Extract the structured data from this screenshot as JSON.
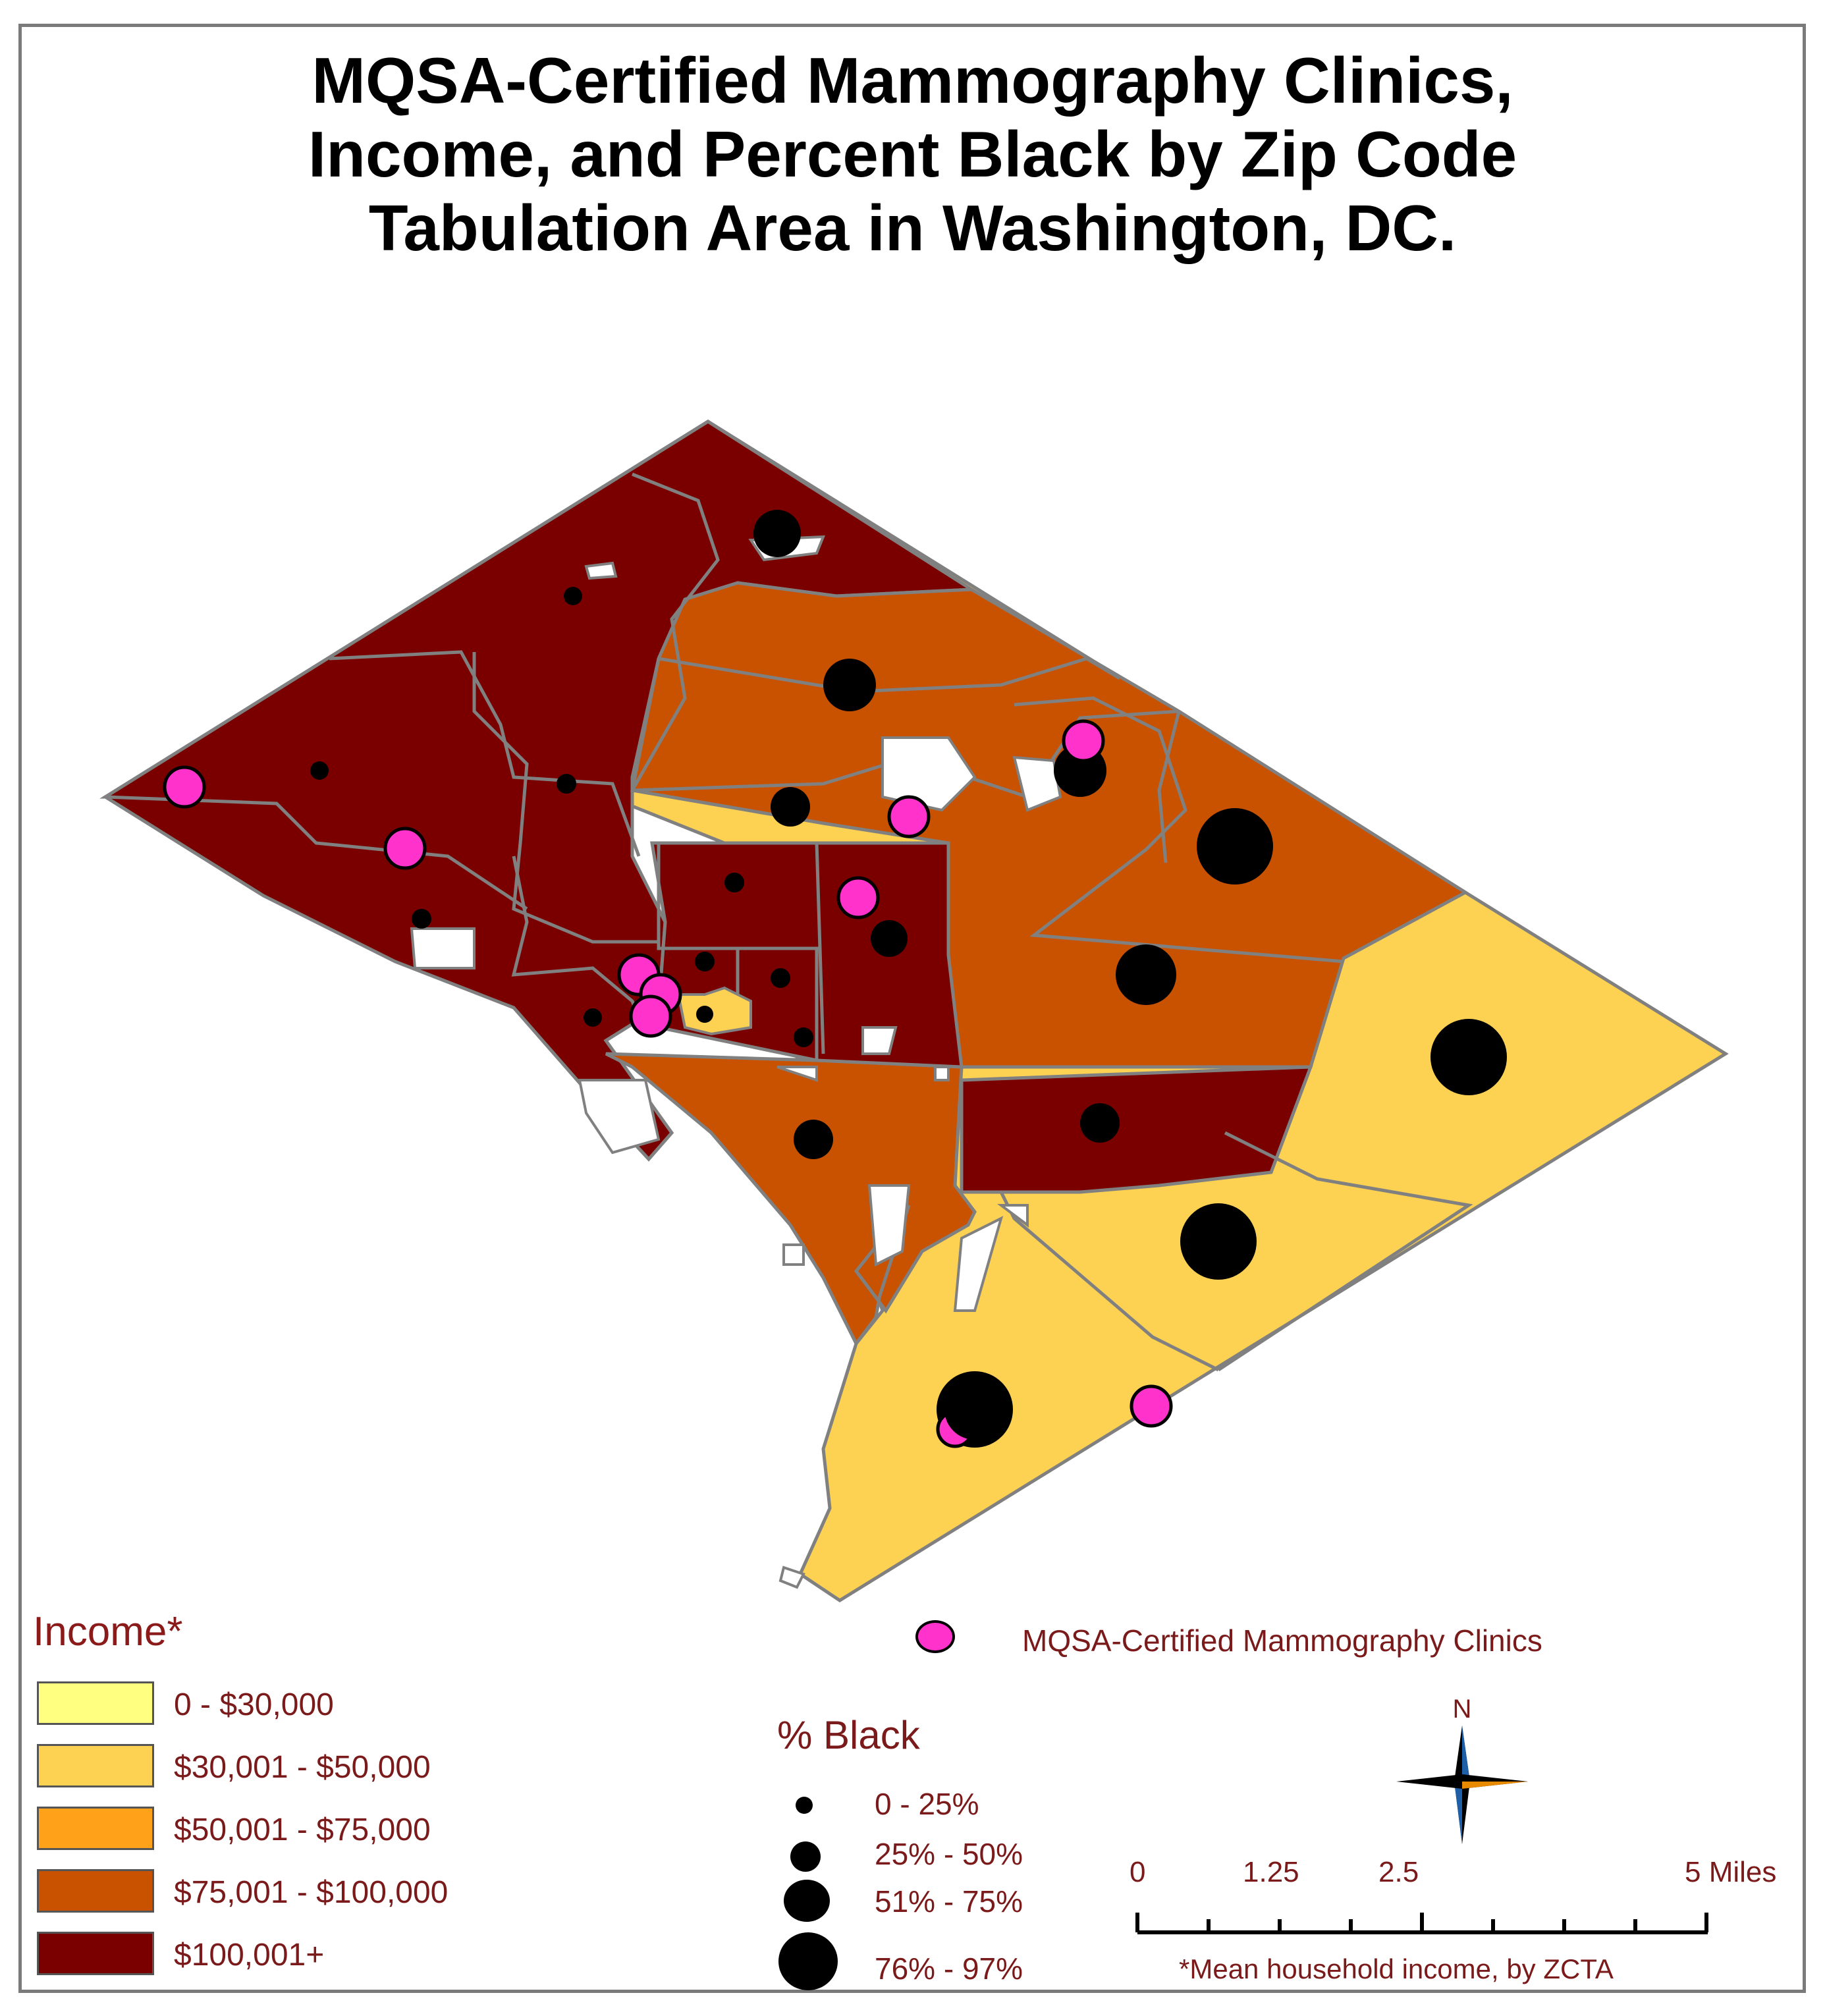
{
  "title": {
    "line1": "MQSA-Certified Mammography Clinics,",
    "line2": "Income, and Percent Black by Zip Code",
    "line3": "Tabulation Area in Washington, DC."
  },
  "colors": {
    "income_0_30k": "#ffff80",
    "income_30_50k": "#fdd152",
    "income_50_75k": "#ffa21a",
    "income_75_100k": "#c85200",
    "income_100k_plus": "#7a0000",
    "clinic": "#ff33cc",
    "black_dot": "#000000",
    "boundary": "#808080"
  },
  "legend": {
    "income_title": "Income*",
    "income_classes": [
      {
        "label": "0 - $30,000",
        "color": "#ffff80"
      },
      {
        "label": "$30,001 - $50,000",
        "color": "#fdd152"
      },
      {
        "label": "$50,001 - $75,000",
        "color": "#ffa21a"
      },
      {
        "label": "$75,001 - $100,000",
        "color": "#c85200"
      },
      {
        "label": "$100,001+",
        "color": "#7a0000"
      }
    ],
    "clinic_label": "MQSA-Certified Mammography Clinics",
    "black_title": "% Black",
    "black_classes": [
      {
        "label": "0 - 25%"
      },
      {
        "label": "25% - 50%"
      },
      {
        "label": "51% - 75%"
      },
      {
        "label": "76% - 97%"
      }
    ]
  },
  "scale_bar": {
    "labels": [
      "0",
      "1.25",
      "2.5",
      "5 Miles"
    ]
  },
  "north_arrow": {
    "label": "N",
    "icon": "compass-rose-icon"
  },
  "footnote": "*Mean household income, by ZCTA"
}
